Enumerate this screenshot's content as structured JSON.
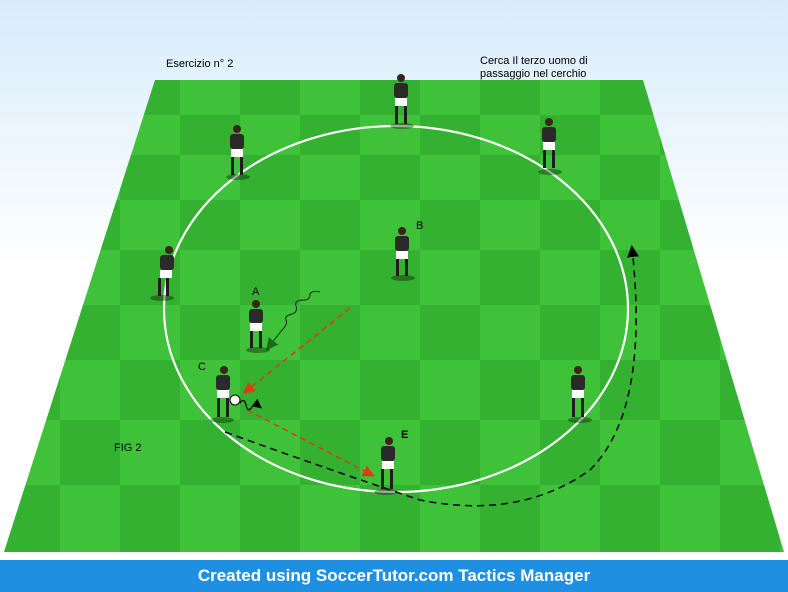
{
  "diagram": {
    "title_left": "Esercizio n° 2",
    "title_right_line1": "Cerca Il terzo uomo di",
    "title_right_line2": "passaggio nel cerchio",
    "fig_label": "FIG 2",
    "footer": "Created using SoccerTutor.com Tactics Manager",
    "player_labels": {
      "a": "A",
      "b": "B",
      "c": "C",
      "e": "E"
    },
    "colors": {
      "pitch_light": "#3fc23a",
      "pitch_dark": "#2fa82d",
      "circle": "#ffffff",
      "pass_arrow": "#e03a16",
      "run_arrow": "#000000",
      "footer_bg": "#1f8fe2"
    }
  }
}
